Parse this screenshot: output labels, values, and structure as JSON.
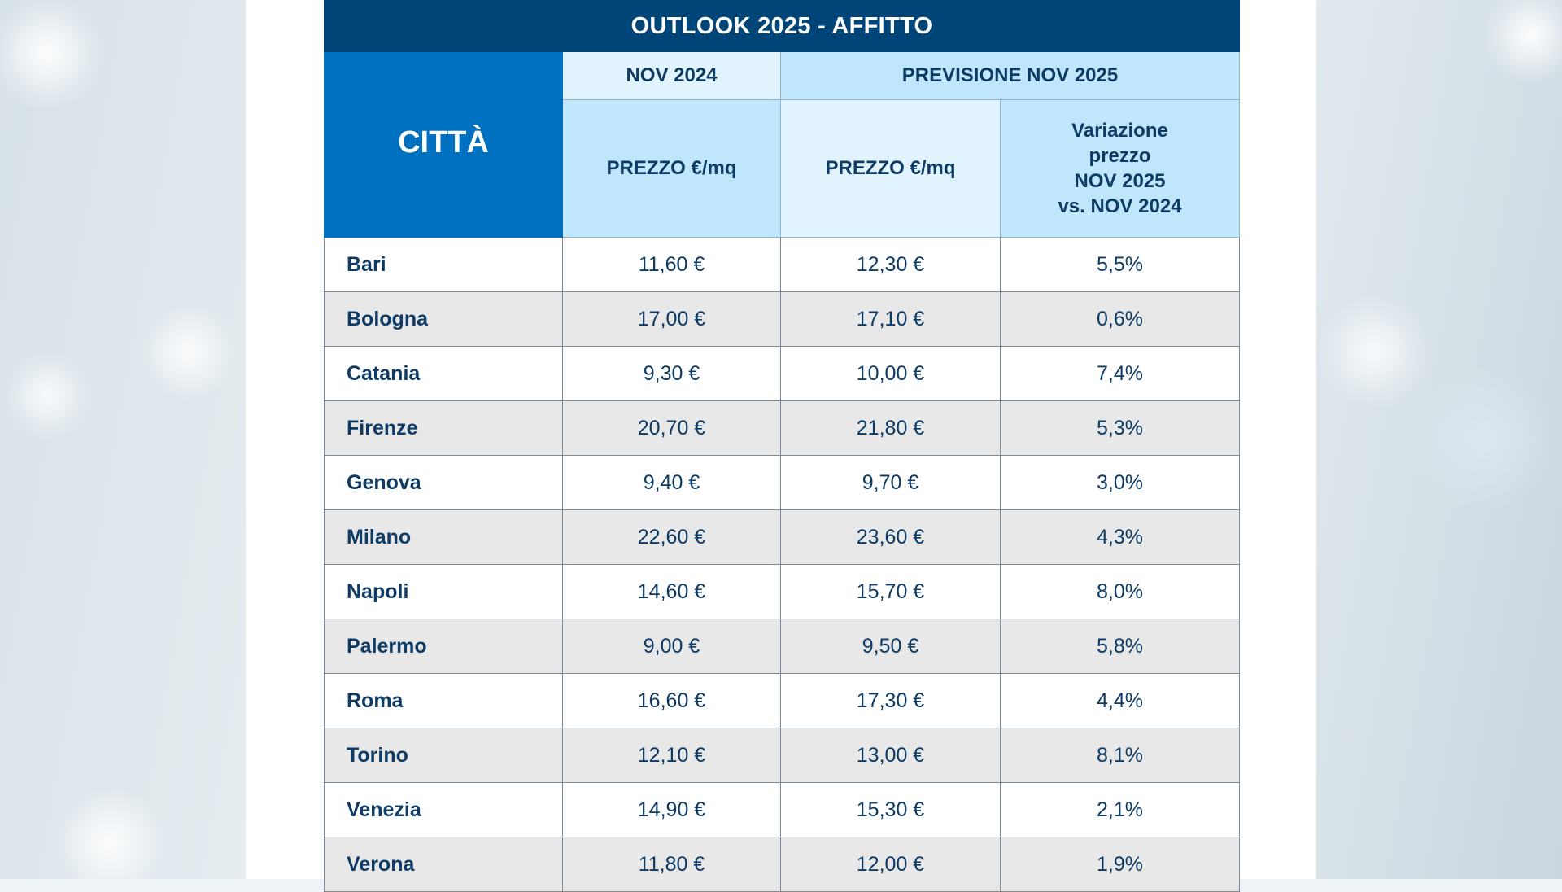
{
  "chart_data": {
    "type": "table",
    "title": "OUTLOOK 2025 - AFFITTO",
    "headers": {
      "city": "CITTÀ",
      "nov2024": "NOV 2024",
      "forecast": "PREVISIONE NOV 2025",
      "price_2024": "PREZZO €/mq",
      "price_2025": "PREZZO €/mq",
      "variation": [
        "Variazione",
        "prezzo",
        "NOV 2025",
        "vs. NOV 2024"
      ]
    },
    "rows": [
      {
        "city": "Bari",
        "nov2024": "11,60 €",
        "nov2025": "12,30 €",
        "variation": "5,5%"
      },
      {
        "city": "Bologna",
        "nov2024": "17,00 €",
        "nov2025": "17,10 €",
        "variation": "0,6%"
      },
      {
        "city": "Catania",
        "nov2024": "9,30 €",
        "nov2025": "10,00 €",
        "variation": "7,4%"
      },
      {
        "city": "Firenze",
        "nov2024": "20,70 €",
        "nov2025": "21,80 €",
        "variation": "5,3%"
      },
      {
        "city": "Genova",
        "nov2024": "9,40 €",
        "nov2025": "9,70 €",
        "variation": "3,0%"
      },
      {
        "city": "Milano",
        "nov2024": "22,60 €",
        "nov2025": "23,60 €",
        "variation": "4,3%"
      },
      {
        "city": "Napoli",
        "nov2024": "14,60 €",
        "nov2025": "15,70 €",
        "variation": "8,0%"
      },
      {
        "city": "Palermo",
        "nov2024": "9,00 €",
        "nov2025": "9,50 €",
        "variation": "5,8%"
      },
      {
        "city": "Roma",
        "nov2024": "16,60 €",
        "nov2025": "17,30 €",
        "variation": "4,4%"
      },
      {
        "city": "Torino",
        "nov2024": "12,10 €",
        "nov2025": "13,00 €",
        "variation": "8,1%"
      },
      {
        "city": "Venezia",
        "nov2024": "14,90 €",
        "nov2025": "15,30 €",
        "variation": "2,1%"
      },
      {
        "city": "Verona",
        "nov2024": "11,80 €",
        "nov2025": "12,00 €",
        "variation": "1,9%"
      }
    ]
  },
  "colors": {
    "title_bg": "#004578",
    "city_header_bg": "#0070c0",
    "header_light": "#e1f3fc",
    "header_mid": "#bfe6fa",
    "text_dark": "#0d3b66",
    "row_alt": "#e8e8e8"
  }
}
